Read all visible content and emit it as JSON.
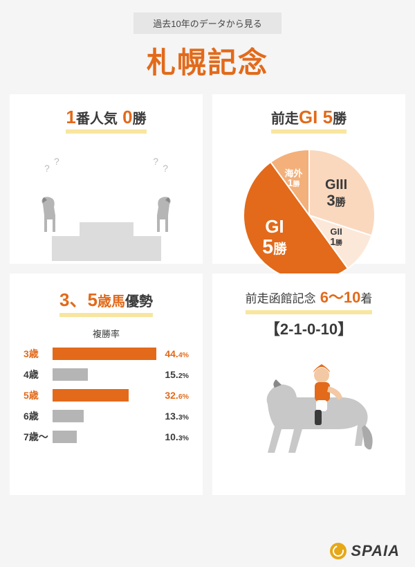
{
  "colors": {
    "accent": "#e26a1a",
    "accent_light": "#f3b07a",
    "accent_pale": "#fad8be",
    "dark_text": "#3a3a3a",
    "grey_bar": "#b5b5b5",
    "bg_card": "#ffffff",
    "bg_page": "#f5f5f5",
    "highlight_underline": "#f8e6a0",
    "podium_grey": "#dcdcdc"
  },
  "header": {
    "subtitle": "過去10年のデータから見る",
    "title": "札幌記念"
  },
  "card1": {
    "title_accent_1": "1",
    "title_text_1": "番人気",
    "title_accent_2": " 0",
    "title_text_2": "勝"
  },
  "card2": {
    "title_prefix": "前走",
    "title_grade": "GI",
    "title_wins_num": " 5",
    "title_wins_suffix": "勝",
    "pie": {
      "type": "pie",
      "slices": [
        {
          "label_main": "GI",
          "label_num": "5",
          "label_suffix": "勝",
          "value": 5,
          "color": "#e26a1a",
          "text_color": "#ffffff"
        },
        {
          "label_main": "海外",
          "label_num": "1",
          "label_suffix": "勝",
          "value": 1,
          "color": "#f3b07a",
          "text_color": "#ffffff"
        },
        {
          "label_main": "GIII",
          "label_num": "3",
          "label_suffix": "勝",
          "value": 3,
          "color": "#fad8be",
          "text_color": "#3a3a3a"
        },
        {
          "label_main": "GII",
          "label_num": "1",
          "label_suffix": "勝",
          "value": 1,
          "color": "#fce8d8",
          "text_color": "#3a3a3a"
        }
      ]
    }
  },
  "card3": {
    "title_accent": "3、5",
    "title_mid": "歳馬",
    "title_dark": "優勢",
    "sub_label": "複勝率",
    "bars": {
      "type": "bar",
      "max_pct": 44.4,
      "rows": [
        {
          "age": "3歳",
          "pct": 44.4,
          "highlight": true
        },
        {
          "age": "4歳",
          "pct": 15.2,
          "highlight": false
        },
        {
          "age": "5歳",
          "pct": 32.6,
          "highlight": true
        },
        {
          "age": "6歳",
          "pct": 13.3,
          "highlight": false
        },
        {
          "age": "7歳～",
          "pct": 10.3,
          "highlight": false
        }
      ]
    }
  },
  "card4": {
    "line1_prefix": "前走函館記念",
    "line1_accent": " 6～10",
    "line1_suffix": "着",
    "line2": "【2-1-0-10】"
  },
  "logo": {
    "text": "SPAIA"
  }
}
